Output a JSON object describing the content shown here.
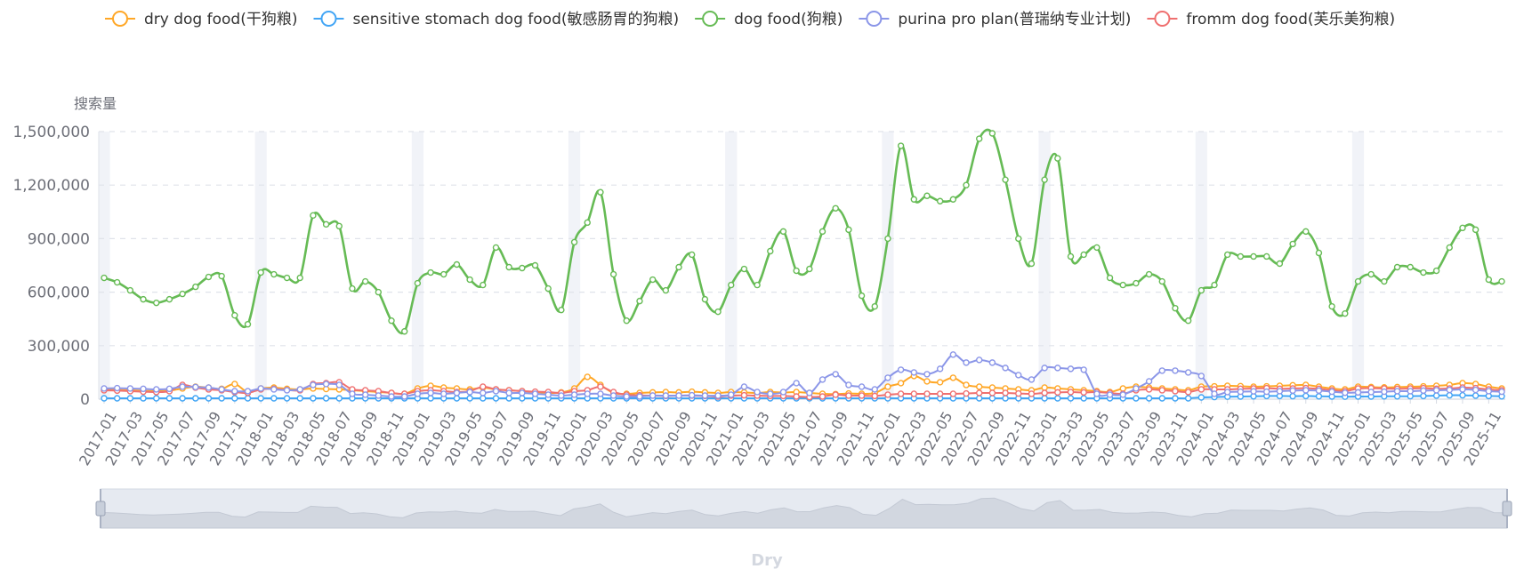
{
  "chart_data": {
    "type": "line",
    "ylabel": "搜索量",
    "xlabel": "",
    "ylim": [
      0,
      1500000
    ],
    "yticks": [
      0,
      300000,
      600000,
      900000,
      1200000,
      1500000
    ],
    "ytick_labels": [
      "0",
      "300,000",
      "600,000",
      "900,000",
      "1,200,000",
      "1,500,000"
    ],
    "xtick_labels": [
      "2017-01",
      "2017-03",
      "2017-05",
      "2017-07",
      "2017-09",
      "2017-11",
      "2018-01",
      "2018-03",
      "2018-05",
      "2018-07",
      "2018-09",
      "2018-11",
      "2019-01",
      "2019-03",
      "2019-05",
      "2019-07",
      "2019-09",
      "2019-11",
      "2020-01",
      "2020-03",
      "2020-05",
      "2020-07",
      "2020-09",
      "2020-11",
      "2021-01",
      "2021-03",
      "2021-05",
      "2021-07",
      "2021-09",
      "2021-11",
      "2022-01",
      "2022-03",
      "2022-05",
      "2022-07",
      "2022-09",
      "2022-11",
      "2023-01",
      "2023-03",
      "2023-05",
      "2023-07",
      "2023-09",
      "2023-11",
      "2024-01",
      "2024-03",
      "2024-05",
      "2024-07",
      "2024-09",
      "2024-11",
      "2025-01",
      "2025-03",
      "2025-05",
      "2025-07",
      "2025-09",
      "2025-11"
    ],
    "x_start": "2017-01",
    "n_months": 108,
    "grid": true,
    "legend_position": "top",
    "footer_label": "Dry",
    "series": [
      {
        "name": "dry dog food(干狗粮)",
        "color": "#ffa726",
        "values": [
          55000,
          52000,
          50000,
          47000,
          45000,
          48000,
          60000,
          70000,
          65000,
          58000,
          85000,
          40000,
          60000,
          65000,
          58000,
          55000,
          60000,
          57000,
          55000,
          50000,
          45000,
          40000,
          35000,
          30000,
          60000,
          75000,
          65000,
          60000,
          55000,
          65000,
          55000,
          50000,
          45000,
          40000,
          35000,
          38000,
          60000,
          125000,
          80000,
          35000,
          30000,
          35000,
          38000,
          40000,
          38000,
          42000,
          38000,
          35000,
          40000,
          38000,
          35000,
          40000,
          38000,
          40000,
          35000,
          30000,
          28000,
          32000,
          30000,
          35000,
          70000,
          90000,
          130000,
          100000,
          95000,
          120000,
          80000,
          70000,
          65000,
          60000,
          55000,
          50000,
          65000,
          60000,
          55000,
          50000,
          45000,
          40000,
          60000,
          70000,
          65000,
          60000,
          55000,
          50000,
          70000,
          72000,
          75000,
          73000,
          70000,
          72000,
          75000,
          78000,
          80000,
          70000,
          60000,
          55000,
          70000,
          68000,
          66000,
          68000,
          70000,
          72000,
          75000,
          80000,
          90000,
          85000,
          70000,
          60000
        ]
      },
      {
        "name": "sensitive stomach dog food(敏感肠胃的狗粮)",
        "color": "#42a5f5",
        "values": [
          5000,
          5000,
          5000,
          5000,
          5000,
          5000,
          5000,
          5000,
          5000,
          5000,
          5000,
          5000,
          5000,
          5000,
          5000,
          5000,
          5000,
          5000,
          5000,
          5000,
          5000,
          5000,
          5000,
          5000,
          5000,
          5000,
          5000,
          5000,
          5000,
          5000,
          5000,
          5000,
          5000,
          5000,
          5000,
          5000,
          5000,
          5000,
          5000,
          5000,
          5000,
          5000,
          5000,
          5000,
          5000,
          5000,
          5000,
          5000,
          5000,
          5000,
          5000,
          5000,
          5000,
          5000,
          5000,
          5000,
          5000,
          5000,
          5000,
          5000,
          5000,
          5000,
          5000,
          5000,
          5000,
          5000,
          5000,
          5000,
          5000,
          5000,
          5000,
          5000,
          5000,
          5000,
          5000,
          5000,
          5000,
          5000,
          5000,
          5000,
          5000,
          5000,
          5000,
          5000,
          10000,
          12000,
          14000,
          15000,
          16000,
          18000,
          18000,
          17000,
          18000,
          16000,
          15000,
          14000,
          15000,
          15000,
          16000,
          16000,
          17000,
          18000,
          20000,
          22000,
          22000,
          20000,
          18000,
          16000
        ]
      },
      {
        "name": "dog food(狗粮)",
        "color": "#66bb55",
        "values": [
          680000,
          655000,
          610000,
          560000,
          540000,
          560000,
          590000,
          630000,
          685000,
          690000,
          470000,
          420000,
          710000,
          700000,
          680000,
          680000,
          1030000,
          980000,
          970000,
          620000,
          660000,
          600000,
          440000,
          380000,
          650000,
          710000,
          700000,
          755000,
          670000,
          640000,
          850000,
          740000,
          735000,
          750000,
          620000,
          500000,
          880000,
          990000,
          1160000,
          700000,
          440000,
          550000,
          670000,
          610000,
          740000,
          810000,
          560000,
          490000,
          640000,
          730000,
          640000,
          830000,
          940000,
          720000,
          730000,
          940000,
          1070000,
          950000,
          580000,
          520000,
          900000,
          1420000,
          1120000,
          1140000,
          1110000,
          1120000,
          1200000,
          1460000,
          1490000,
          1230000,
          900000,
          760000,
          1230000,
          1350000,
          800000,
          810000,
          850000,
          680000,
          640000,
          650000,
          700000,
          660000,
          510000,
          440000,
          610000,
          640000,
          810000,
          800000,
          800000,
          800000,
          760000,
          870000,
          940000,
          820000,
          520000,
          480000,
          660000,
          700000,
          660000,
          740000,
          740000,
          710000,
          720000,
          850000,
          960000,
          950000,
          670000,
          660000
        ]
      },
      {
        "name": "purina pro plan(普瑞纳专业计划)",
        "color": "#8b96e8",
        "values": [
          60000,
          62000,
          60000,
          58000,
          55000,
          58000,
          70000,
          68000,
          65000,
          55000,
          45000,
          45000,
          60000,
          55000,
          50000,
          55000,
          80000,
          85000,
          80000,
          30000,
          25000,
          20000,
          15000,
          15000,
          30000,
          35000,
          30000,
          35000,
          40000,
          35000,
          45000,
          35000,
          35000,
          30000,
          25000,
          20000,
          25000,
          30000,
          30000,
          20000,
          15000,
          15000,
          20000,
          20000,
          20000,
          22000,
          20000,
          20000,
          25000,
          70000,
          40000,
          30000,
          40000,
          90000,
          35000,
          110000,
          140000,
          80000,
          70000,
          55000,
          120000,
          165000,
          150000,
          140000,
          170000,
          250000,
          205000,
          220000,
          205000,
          175000,
          135000,
          110000,
          175000,
          175000,
          170000,
          165000,
          30000,
          25000,
          25000,
          60000,
          100000,
          160000,
          160000,
          150000,
          130000,
          30000,
          40000,
          42000,
          44000,
          42000,
          45000,
          48000,
          50000,
          48000,
          42000,
          36000,
          38000,
          40000,
          42000,
          45000,
          45000,
          48000,
          50000,
          52000,
          55000,
          52000,
          45000,
          42000
        ]
      },
      {
        "name": "fromm dog food(芙乐美狗粮)",
        "color": "#ef7070",
        "values": [
          50000,
          48000,
          45000,
          42000,
          40000,
          45000,
          80000,
          65000,
          55000,
          50000,
          40000,
          35000,
          55000,
          58000,
          52000,
          50000,
          85000,
          90000,
          95000,
          55000,
          50000,
          45000,
          35000,
          30000,
          45000,
          50000,
          45000,
          40000,
          45000,
          70000,
          55000,
          50000,
          45000,
          42000,
          40000,
          35000,
          45000,
          50000,
          70000,
          40000,
          25000,
          22000,
          20000,
          18000,
          20000,
          20000,
          18000,
          15000,
          20000,
          22000,
          20000,
          18000,
          18000,
          15000,
          12000,
          15000,
          25000,
          20000,
          20000,
          18000,
          25000,
          30000,
          30000,
          30000,
          30000,
          30000,
          32000,
          35000,
          35000,
          35000,
          32000,
          30000,
          35000,
          38000,
          40000,
          38000,
          40000,
          35000,
          30000,
          50000,
          55000,
          50000,
          45000,
          40000,
          55000,
          55000,
          55000,
          58000,
          60000,
          62000,
          58000,
          60000,
          62000,
          58000,
          50000,
          45000,
          60000,
          62000,
          60000,
          58000,
          60000,
          62000,
          58000,
          60000,
          65000,
          62000,
          55000,
          50000
        ]
      }
    ]
  }
}
